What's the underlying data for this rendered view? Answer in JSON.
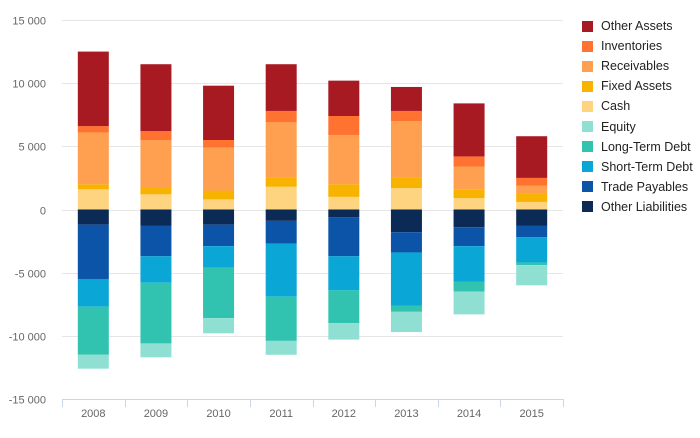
{
  "chart_data": {
    "type": "bar",
    "stacked": true,
    "categories": [
      "2008",
      "2009",
      "2010",
      "2011",
      "2012",
      "2013",
      "2014",
      "2015"
    ],
    "y_ticks": [
      "15 000",
      "10 000",
      "5 000",
      "0",
      "-5 000",
      "-10 000",
      "-15 000"
    ],
    "ylim": [
      -15000,
      15000
    ],
    "grid": true,
    "legend_position": "right",
    "series": [
      {
        "name": "Other Liabilities",
        "color": "#0b2a55",
        "values": [
          -1200,
          -1300,
          -1200,
          -900,
          -600,
          -1800,
          -1400,
          -1300
        ]
      },
      {
        "name": "Trade Payables",
        "color": "#0b54a8",
        "values": [
          -4300,
          -2400,
          -1700,
          -1800,
          -3100,
          -1600,
          -1500,
          -900
        ]
      },
      {
        "name": "Short-Term Debt",
        "color": "#0aa6d6",
        "values": [
          -2200,
          -2100,
          -1700,
          -4200,
          -2700,
          -4200,
          -2800,
          -2000
        ]
      },
      {
        "name": "Long-Term Debt",
        "color": "#32c3b0",
        "values": [
          -3800,
          -4800,
          -4000,
          -3500,
          -2600,
          -500,
          -800,
          -200
        ]
      },
      {
        "name": "Equity",
        "color": "#8fe0d3",
        "values": [
          -1100,
          -1100,
          -1200,
          -1100,
          -1300,
          -1600,
          -1800,
          -1600
        ]
      },
      {
        "name": "Cash",
        "color": "#ffd480",
        "values": [
          1600,
          1200,
          800,
          1800,
          1000,
          1700,
          900,
          600
        ]
      },
      {
        "name": "Fixed Assets",
        "color": "#f8b200",
        "values": [
          400,
          500,
          700,
          700,
          1000,
          800,
          700,
          700
        ]
      },
      {
        "name": "Receivables",
        "color": "#ff9f50",
        "values": [
          4100,
          3800,
          3400,
          4400,
          3900,
          4500,
          1800,
          600
        ]
      },
      {
        "name": "Inventories",
        "color": "#ff7230",
        "values": [
          500,
          700,
          600,
          900,
          1500,
          800,
          800,
          600
        ]
      },
      {
        "name": "Other Assets",
        "color": "#a71a22",
        "values": [
          5900,
          5300,
          4300,
          3700,
          2800,
          1900,
          4200,
          3300
        ]
      }
    ],
    "legend_order": [
      "Other Assets",
      "Inventories",
      "Receivables",
      "Fixed Assets",
      "Cash",
      "Equity",
      "Long-Term Debt",
      "Short-Term Debt",
      "Trade Payables",
      "Other Liabilities"
    ],
    "colors": {
      "grid": "#e6e6e6",
      "axis": "#ccd6eb",
      "tick_text": "#666666"
    }
  }
}
